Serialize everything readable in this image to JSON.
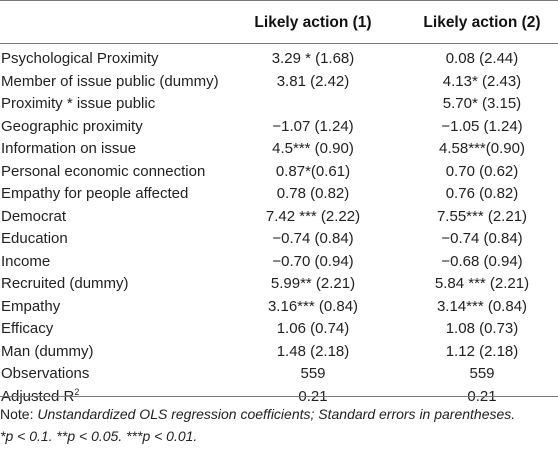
{
  "headers": {
    "col1": "Likely action (1)",
    "col2": "Likely action (2)"
  },
  "rows": [
    {
      "label": "Psychological Proximity",
      "v1": "3.29 * (1.68)",
      "v2": "0.08 (2.44)"
    },
    {
      "label": "Member of issue public (dummy)",
      "v1": "3.81 (2.42)",
      "v2": "4.13* (2.43)"
    },
    {
      "label": "Proximity * issue public",
      "v1": "",
      "v2": "5.70* (3.15)"
    },
    {
      "label": "Geographic proximity",
      "v1": "−1.07 (1.24)",
      "v2": "−1.05 (1.24)"
    },
    {
      "label": "Information on issue",
      "v1": "4.5*** (0.90)",
      "v2": "4.58***(0.90)"
    },
    {
      "label": "Personal economic connection",
      "v1": "0.87*(0.61)",
      "v2": "0.70 (0.62)"
    },
    {
      "label": "Empathy for people affected",
      "v1": "0.78 (0.82)",
      "v2": "0.76 (0.82)"
    },
    {
      "label": "Democrat",
      "v1": "7.42 *** (2.22)",
      "v2": "7.55*** (2.21)"
    },
    {
      "label": "Education",
      "v1": "−0.74 (0.84)",
      "v2": "−0.74 (0.84)"
    },
    {
      "label": "Income",
      "v1": "−0.70 (0.94)",
      "v2": "−0.68 (0.94)"
    },
    {
      "label": "Recruited (dummy)",
      "v1": "5.99** (2.21)",
      "v2": "5.84 *** (2.21)"
    },
    {
      "label": "Empathy",
      "v1": "3.16*** (0.84)",
      "v2": "3.14*** (0.84)"
    },
    {
      "label": "Efficacy",
      "v1": "1.06 (0.74)",
      "v2": "1.08 (0.73)"
    },
    {
      "label": "Man (dummy)",
      "v1": "1.48 (2.18)",
      "v2": "1.12 (2.18)"
    },
    {
      "label": "Observations",
      "v1": "559",
      "v2": "559"
    }
  ],
  "adjusted_r2": {
    "label": "Adjusted R",
    "superscript": "2",
    "v1": "0.21",
    "v2": "0.21"
  },
  "note": {
    "prefix": "Note: ",
    "text": "Unstandardized OLS regression coefficients; Standard errors in parentheses.",
    "sig_line": "*p < 0.1. **p < 0.05. ***p < 0.01."
  }
}
